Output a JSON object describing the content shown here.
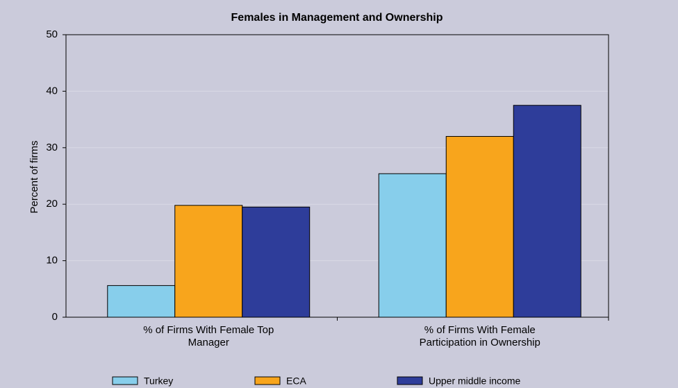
{
  "chart_data": {
    "type": "bar",
    "title": "Females in Management and Ownership",
    "y_label": "Percent of firms",
    "categories": [
      "% of Firms With Female Top Manager",
      "% of Firms With Female Participation in Ownership"
    ],
    "series": [
      {
        "name": "Turkey",
        "color": "#87ceeb",
        "values": [
          5.6,
          25.4
        ]
      },
      {
        "name": "ECA",
        "color": "#f8a51c",
        "values": [
          19.8,
          32.0
        ]
      },
      {
        "name": "Upper middle income",
        "color": "#2e3d9a",
        "values": [
          19.5,
          37.5
        ]
      }
    ],
    "ylim": [
      0,
      50
    ],
    "yticks": [
      0,
      10,
      20,
      30,
      40,
      50
    ],
    "grid": true
  }
}
